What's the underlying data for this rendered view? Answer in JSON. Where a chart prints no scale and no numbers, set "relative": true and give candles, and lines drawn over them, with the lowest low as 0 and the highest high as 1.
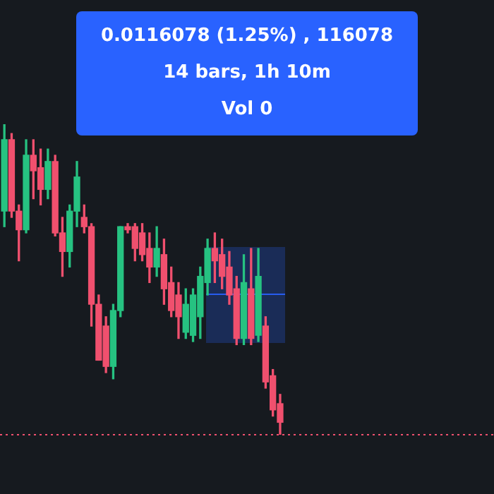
{
  "chart_data": {
    "type": "candlestick",
    "relative": true,
    "categories": [
      null,
      null,
      null,
      null,
      null,
      null,
      null,
      null,
      null,
      null,
      null,
      null,
      null,
      null,
      null,
      null,
      null,
      null,
      null,
      null,
      null,
      null,
      null,
      null,
      null,
      null,
      null,
      null,
      null,
      null,
      null,
      null,
      null,
      null,
      null,
      null,
      null,
      null,
      null
    ],
    "ohlc": [
      [
        0.72,
        1.0,
        0.67,
        0.95
      ],
      [
        0.95,
        0.97,
        0.7,
        0.72
      ],
      [
        0.72,
        0.74,
        0.56,
        0.66
      ],
      [
        0.66,
        0.95,
        0.65,
        0.9
      ],
      [
        0.9,
        0.95,
        0.76,
        0.85
      ],
      [
        0.86,
        0.92,
        0.74,
        0.79
      ],
      [
        0.79,
        0.92,
        0.76,
        0.88
      ],
      [
        0.88,
        0.9,
        0.64,
        0.65
      ],
      [
        0.65,
        0.7,
        0.51,
        0.59
      ],
      [
        0.59,
        0.74,
        0.54,
        0.72
      ],
      [
        0.72,
        0.88,
        0.67,
        0.83
      ],
      [
        0.7,
        0.74,
        0.65,
        0.67
      ],
      [
        0.67,
        0.68,
        0.35,
        0.42
      ],
      [
        0.42,
        0.45,
        0.24,
        0.24
      ],
      [
        0.35,
        0.38,
        0.2,
        0.22
      ],
      [
        0.22,
        0.42,
        0.18,
        0.4
      ],
      [
        0.4,
        0.67,
        0.38,
        0.67
      ],
      [
        0.67,
        0.68,
        0.65,
        0.66
      ],
      [
        0.67,
        0.68,
        0.56,
        0.6
      ],
      [
        0.65,
        0.68,
        0.56,
        0.58
      ],
      [
        0.6,
        0.65,
        0.49,
        0.54
      ],
      [
        0.54,
        0.67,
        0.51,
        0.6
      ],
      [
        0.58,
        0.63,
        0.42,
        0.47
      ],
      [
        0.49,
        0.54,
        0.38,
        0.4
      ],
      [
        0.45,
        0.49,
        0.31,
        0.38
      ],
      [
        0.33,
        0.47,
        0.31,
        0.42
      ],
      [
        0.32,
        0.47,
        0.3,
        0.45
      ],
      [
        0.38,
        0.54,
        0.31,
        0.51
      ],
      [
        0.49,
        0.63,
        0.45,
        0.6
      ],
      [
        0.6,
        0.65,
        0.49,
        0.56
      ],
      [
        0.58,
        0.63,
        0.47,
        0.51
      ],
      [
        0.54,
        0.59,
        0.42,
        0.45
      ],
      [
        0.47,
        0.51,
        0.29,
        0.31
      ],
      [
        0.31,
        0.58,
        0.29,
        0.49
      ],
      [
        0.47,
        0.6,
        0.29,
        0.31
      ],
      [
        0.32,
        0.6,
        0.3,
        0.51
      ],
      [
        0.35,
        0.38,
        0.15,
        0.17
      ],
      [
        0.19,
        0.21,
        0.06,
        0.08
      ],
      [
        0.1,
        0.13,
        0.0,
        0.04
      ]
    ],
    "colors": [
      "#26c281",
      "#f0506e",
      "#f0506e",
      "#26c281",
      "#f0506e",
      "#f0506e",
      "#26c281",
      "#f0506e",
      "#f0506e",
      "#26c281",
      "#26c281",
      "#f0506e",
      "#f0506e",
      "#f0506e",
      "#f0506e",
      "#26c281",
      "#26c281",
      "#f0506e",
      "#f0506e",
      "#f0506e",
      "#f0506e",
      "#26c281",
      "#f0506e",
      "#f0506e",
      "#f0506e",
      "#26c281",
      "#26c281",
      "#26c281",
      "#26c281",
      "#f0506e",
      "#f0506e",
      "#f0506e",
      "#f0506e",
      "#26c281",
      "#f0506e",
      "#26c281",
      "#f0506e",
      "#f0506e",
      "#f0506e"
    ],
    "ref_lines": [
      {
        "axis": "y",
        "value": 0,
        "color": "#f0506e",
        "line_style": "dotted"
      }
    ],
    "annotations": [
      "0.0116078 (1.25%) , 116078",
      "14 bars, 1h 10m",
      "Vol 0"
    ]
  }
}
